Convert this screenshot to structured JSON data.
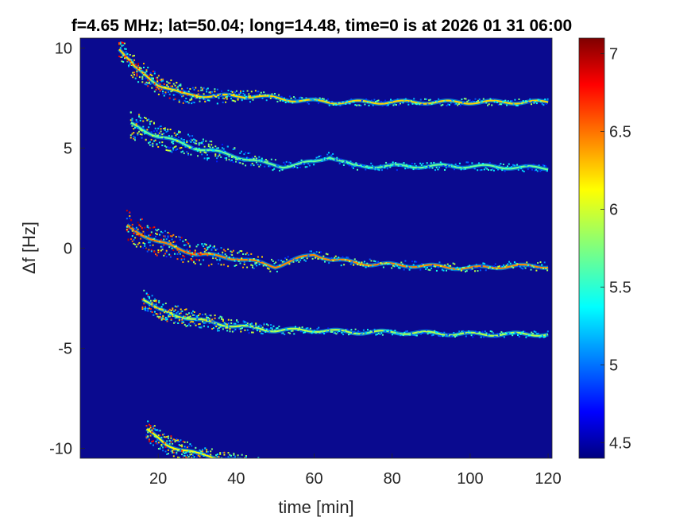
{
  "chart_data": {
    "type": "heatmap",
    "title": "f=4.65 MHz;  lat=50.04; long=14.48, time=0 is at 2026 01 31 06:00",
    "xlabel": "time [min]",
    "ylabel": "Δf [Hz]",
    "xlim": [
      0,
      121
    ],
    "ylim": [
      -10.5,
      10.5
    ],
    "xticks": [
      20,
      40,
      60,
      80,
      100,
      120
    ],
    "yticks": [
      10,
      5,
      0,
      -5,
      -10
    ],
    "colorbar": {
      "clim": [
        4.4,
        7.1
      ],
      "ticks": [
        7,
        6.5,
        6,
        5.5,
        5,
        4.5
      ],
      "colormap": "jet"
    },
    "background_color": "#0a0a8f",
    "traces": [
      {
        "name": "",
        "start_min": 10,
        "points": [
          [
            10,
            10
          ],
          [
            14,
            9
          ],
          [
            20,
            8.2
          ],
          [
            26,
            7.7
          ],
          [
            34,
            7.6
          ],
          [
            45,
            7.6
          ],
          [
            55,
            7.4
          ],
          [
            65,
            7.3
          ],
          [
            80,
            7.3
          ],
          [
            100,
            7.3
          ],
          [
            120,
            7.3
          ]
        ],
        "spread": 0.35,
        "intensity": 6.5
      },
      {
        "name": "",
        "start_min": 13,
        "points": [
          [
            13,
            6.2
          ],
          [
            20,
            5.6
          ],
          [
            30,
            5
          ],
          [
            40,
            4.6
          ],
          [
            48,
            4.2
          ],
          [
            52,
            4.1
          ],
          [
            60,
            4.3
          ],
          [
            64,
            4.6
          ],
          [
            70,
            4.1
          ],
          [
            80,
            4.1
          ],
          [
            100,
            4.1
          ],
          [
            120,
            4
          ]
        ],
        "spread": 0.4,
        "intensity": 6.0
      },
      {
        "name": "",
        "start_min": 12,
        "points": [
          [
            12,
            1.1
          ],
          [
            20,
            0.3
          ],
          [
            30,
            -0.3
          ],
          [
            40,
            -0.5
          ],
          [
            50,
            -0.9
          ],
          [
            55,
            -0.6
          ],
          [
            60,
            -0.3
          ],
          [
            65,
            -0.6
          ],
          [
            75,
            -0.8
          ],
          [
            90,
            -0.9
          ],
          [
            100,
            -1
          ],
          [
            110,
            -0.9
          ],
          [
            120,
            -0.9
          ]
        ],
        "spread": 0.45,
        "intensity": 6.7
      },
      {
        "name": "",
        "start_min": 16,
        "points": [
          [
            16,
            -2.5
          ],
          [
            20,
            -3.1
          ],
          [
            30,
            -3.6
          ],
          [
            40,
            -3.9
          ],
          [
            50,
            -4.1
          ],
          [
            60,
            -4.1
          ],
          [
            70,
            -4.2
          ],
          [
            80,
            -4.2
          ],
          [
            100,
            -4.3
          ],
          [
            120,
            -4.3
          ]
        ],
        "spread": 0.3,
        "intensity": 6.2
      },
      {
        "name": "",
        "start_min": 17,
        "points": [
          [
            17,
            -9.1
          ],
          [
            22,
            -9.8
          ],
          [
            30,
            -10.3
          ],
          [
            40,
            -10.6
          ],
          [
            50,
            -10.9
          ]
        ],
        "spread": 0.3,
        "intensity": 6.4
      }
    ]
  }
}
